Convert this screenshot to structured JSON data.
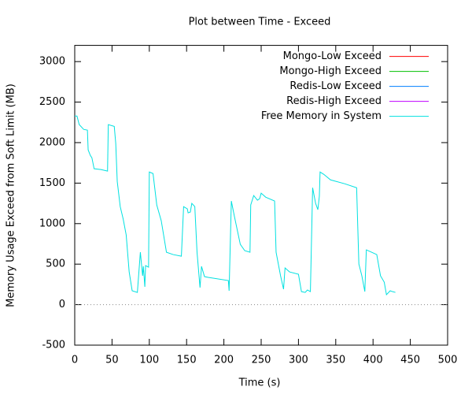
{
  "chart_data": {
    "type": "line",
    "title": "Plot between Time - Exceed",
    "x_label": "Time (s)",
    "y_label": "Memory Usage Exceed from Soft Limit (MB)",
    "xlim": [
      0,
      500
    ],
    "xticks": [
      0,
      50,
      100,
      150,
      200,
      250,
      300,
      350,
      400,
      450,
      500
    ],
    "ylim": [
      -500,
      3200
    ],
    "yticks": [
      -500,
      0,
      500,
      1000,
      1500,
      2000,
      2500,
      3000
    ],
    "zero_line": true,
    "legend": "top right",
    "series": [
      {
        "name": "Mongo-Low Exceed",
        "color": "#ff0000",
        "x": [],
        "values": []
      },
      {
        "name": "Mongo-High Exceed",
        "color": "#00c000",
        "x": [],
        "values": []
      },
      {
        "name": "Redis-Low Exceed",
        "color": "#0080ff",
        "x": [],
        "values": []
      },
      {
        "name": "Redis-High Exceed",
        "color": "#c000ff",
        "x": [],
        "values": []
      },
      {
        "name": "Free Memory in System",
        "color": "#00e0e0",
        "x": [
          0,
          3,
          6,
          12,
          17,
          18,
          21,
          23,
          26,
          35,
          44,
          45,
          53,
          55,
          57,
          61,
          65,
          69,
          73,
          77,
          84,
          88,
          91,
          92,
          94,
          95,
          99,
          100,
          105,
          110,
          116,
          123,
          132,
          143,
          146,
          151,
          152,
          155,
          157,
          161,
          164,
          168,
          170,
          174,
          179,
          206,
          207,
          210,
          214,
          222,
          228,
          235,
          236,
          240,
          245,
          248,
          250,
          256,
          268,
          270,
          276,
          280,
          282,
          288,
          300,
          304,
          309,
          312,
          316,
          319,
          323,
          326,
          328,
          329,
          334,
          343,
          362,
          378,
          381,
          385,
          389,
          391,
          398,
          405,
          410,
          415,
          418,
          423,
          426,
          430
        ],
        "values": [
          2328,
          2328,
          2222,
          2163,
          2154,
          1910,
          1840,
          1813,
          1677,
          1668,
          1648,
          2222,
          2200,
          1990,
          1520,
          1210,
          1055,
          860,
          404,
          171,
          151,
          647,
          356,
          473,
          220,
          482,
          462,
          1637,
          1618,
          1230,
          1036,
          647,
          618,
          598,
          1210,
          1182,
          1133,
          1143,
          1250,
          1210,
          647,
          210,
          472,
          346,
          336,
          297,
          171,
          1279,
          1094,
          744,
          666,
          647,
          1230,
          1347,
          1289,
          1308,
          1376,
          1327,
          1279,
          647,
          356,
          191,
          453,
          404,
          375,
          161,
          151,
          181,
          161,
          1443,
          1250,
          1172,
          1337,
          1637,
          1608,
          1540,
          1492,
          1443,
          501,
          356,
          161,
          676,
          647,
          618,
          356,
          278,
          123,
          171,
          161,
          151
        ]
      }
    ]
  }
}
